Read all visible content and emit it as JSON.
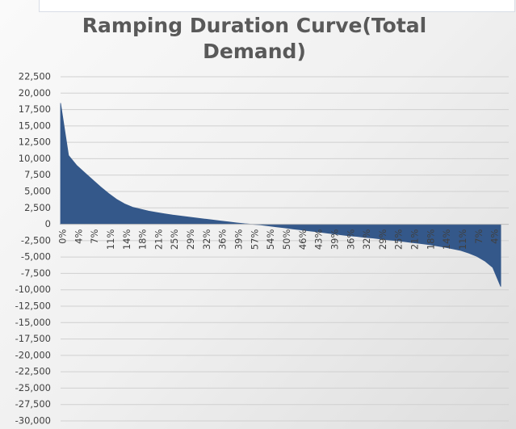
{
  "chart_data": {
    "type": "area",
    "title": "Ramping Duration Curve(Total Demand)",
    "categories": [
      "0%",
      null,
      "4%",
      null,
      "7%",
      null,
      "11%",
      null,
      "14%",
      null,
      "18%",
      null,
      "21%",
      null,
      "25%",
      null,
      "29%",
      null,
      "32%",
      null,
      "36%",
      null,
      "39%",
      null,
      "57%",
      null,
      "54%",
      null,
      "50%",
      null,
      "46%",
      null,
      "43%",
      null,
      "39%",
      null,
      "36%",
      null,
      "32%",
      null,
      "29%",
      null,
      "25%",
      null,
      "21%",
      null,
      "18%",
      null,
      "14%",
      null,
      "11%",
      null,
      "7%",
      null,
      "4%",
      null
    ],
    "values": [
      18500,
      10500,
      9000,
      7900,
      6800,
      5700,
      4700,
      3800,
      3100,
      2600,
      2300,
      2000,
      1800,
      1600,
      1400,
      1250,
      1100,
      950,
      800,
      650,
      500,
      350,
      200,
      80,
      0,
      -100,
      -250,
      -400,
      -550,
      -700,
      -850,
      -1000,
      -1150,
      -1300,
      -1450,
      -1600,
      -1750,
      -1850,
      -2000,
      -2100,
      -2250,
      -2400,
      -2500,
      -2650,
      -2800,
      -2950,
      -3100,
      -3300,
      -3500,
      -3750,
      -4000,
      -4400,
      -4900,
      -5600,
      -6600,
      -9500
    ],
    "color": "#34588a",
    "ylim": [
      -30000,
      22500
    ],
    "yticks": [
      {
        "value": 22500,
        "label": "22,500"
      },
      {
        "value": 20000,
        "label": "20,000"
      },
      {
        "value": 17500,
        "label": "17,500"
      },
      {
        "value": 15000,
        "label": "15,000"
      },
      {
        "value": 12500,
        "label": "12,500"
      },
      {
        "value": 10000,
        "label": "10,000"
      },
      {
        "value": 7500,
        "label": "7,500"
      },
      {
        "value": 5000,
        "label": "5,000"
      },
      {
        "value": 2500,
        "label": "2,500"
      },
      0,
      {
        "value": -2500,
        "label": "-2,500"
      },
      {
        "value": -5000,
        "label": "-5,000"
      },
      {
        "value": -7500,
        "label": "-7,500"
      },
      {
        "value": -10000,
        "label": "-10,000"
      },
      {
        "value": -12500,
        "label": "-12,500"
      },
      {
        "value": -15000,
        "label": "-15,000"
      },
      {
        "value": -17500,
        "label": "-17,500"
      },
      {
        "value": -20000,
        "label": "-20,000"
      },
      {
        "value": -22500,
        "label": "-22,500"
      },
      {
        "value": -25000,
        "label": "-25,000"
      },
      {
        "value": -27500,
        "label": "-27,500"
      },
      {
        "value": -30000,
        "label": "-30,000"
      }
    ],
    "grid": true
  }
}
